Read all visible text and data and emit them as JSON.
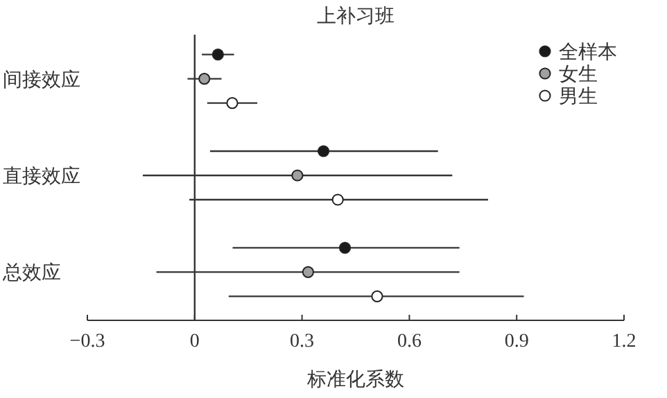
{
  "chart_data": {
    "type": "scatter",
    "orientation": "horizontal",
    "title": "上补习班",
    "xlabel": "标准化系数",
    "categories": [
      "间接效应",
      "直接效应",
      "总效应"
    ],
    "series": [
      {
        "name": "全样本",
        "color": "#1a1a1a",
        "values": [
          0.065,
          0.36,
          0.42
        ],
        "errors": [
          [
            0.02,
            0.11
          ],
          [
            0.043,
            0.68
          ],
          [
            0.106,
            0.74
          ]
        ]
      },
      {
        "name": "女生",
        "color": "#a0a0a0",
        "values": [
          0.027,
          0.287,
          0.317
        ],
        "errors": [
          [
            -0.02,
            0.075
          ],
          [
            -0.145,
            0.72
          ],
          [
            -0.107,
            0.74
          ]
        ]
      },
      {
        "name": "男生",
        "color": "#ffffff",
        "values": [
          0.105,
          0.4,
          0.51
        ],
        "errors": [
          [
            0.035,
            0.175
          ],
          [
            -0.015,
            0.82
          ],
          [
            0.095,
            0.92
          ]
        ]
      }
    ],
    "xlim": [
      -0.3,
      1.2
    ],
    "xticks": [
      {
        "value": -0.3,
        "label": "−0.3"
      },
      0,
      0.3,
      0.6,
      0.9,
      1.2
    ],
    "ref_lines": [
      {
        "axis": "x",
        "value": 0,
        "color": "#333333"
      }
    ],
    "marker": "circle",
    "legend": "top right",
    "grid": false
  }
}
